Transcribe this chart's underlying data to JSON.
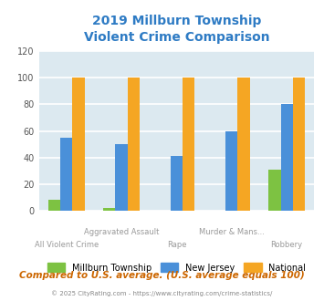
{
  "title_line1": "2019 Millburn Township",
  "title_line2": "Violent Crime Comparison",
  "title_color": "#2e7bc4",
  "categories": [
    "All Violent Crime",
    "Aggravated Assault",
    "Rape",
    "Murder & Mans...",
    "Robbery"
  ],
  "series": {
    "Millburn Township": [
      8,
      2,
      0,
      0,
      31
    ],
    "New Jersey": [
      55,
      50,
      41,
      60,
      80
    ],
    "National": [
      100,
      100,
      100,
      100,
      100
    ]
  },
  "colors": {
    "Millburn Township": "#7dc242",
    "New Jersey": "#4a90d9",
    "National": "#f5a623"
  },
  "ylim": [
    0,
    120
  ],
  "yticks": [
    0,
    20,
    40,
    60,
    80,
    100,
    120
  ],
  "plot_bg_color": "#dce9f0",
  "grid_color": "#ffffff",
  "xlabel_color": "#999999",
  "footer_text": "Compared to U.S. average. (U.S. average equals 100)",
  "footer_color": "#cc6600",
  "credit_text": "© 2025 CityRating.com - https://www.cityrating.com/crime-statistics/",
  "credit_color": "#888888",
  "legend_labels": [
    "Millburn Township",
    "New Jersey",
    "National"
  ],
  "top_xlabels": [
    "",
    "Aggravated Assault",
    "",
    "Murder & Mans...",
    ""
  ],
  "bot_xlabels": [
    "All Violent Crime",
    "",
    "Rape",
    "",
    "Robbery"
  ]
}
